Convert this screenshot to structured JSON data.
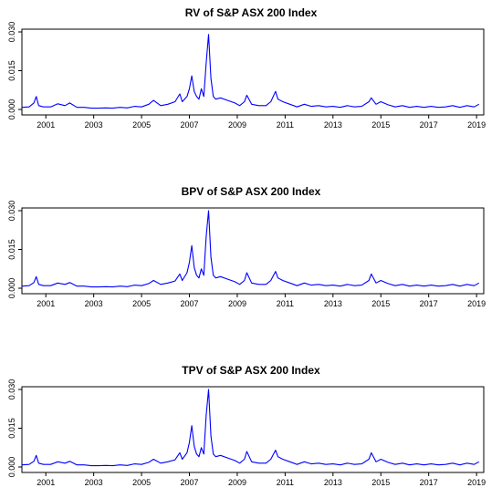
{
  "chart_data": [
    {
      "type": "line",
      "title": "RV of S&P ASX 200 Index",
      "xlabel": "",
      "ylabel": "",
      "xlim": [
        2000.0,
        2019.3
      ],
      "ylim": [
        0,
        0.03
      ],
      "x_ticks": [
        2001,
        2003,
        2005,
        2007,
        2009,
        2011,
        2013,
        2015,
        2017,
        2019
      ],
      "y_ticks": [
        "0.000",
        "0.015",
        "0.030"
      ],
      "series": [
        {
          "color": "#0000ff",
          "x": [
            2000.0,
            2000.3,
            2000.5,
            2000.6,
            2000.7,
            2000.9,
            2001.2,
            2001.5,
            2001.8,
            2002.0,
            2002.3,
            2002.6,
            2002.9,
            2003.2,
            2003.5,
            2003.8,
            2004.1,
            2004.4,
            2004.7,
            2005.0,
            2005.3,
            2005.5,
            2005.8,
            2006.1,
            2006.4,
            2006.6,
            2006.7,
            2006.9,
            2007.0,
            2007.1,
            2007.2,
            2007.3,
            2007.4,
            2007.5,
            2007.6,
            2007.7,
            2007.8,
            2007.9,
            2008.0,
            2008.1,
            2008.3,
            2008.6,
            2008.9,
            2009.1,
            2009.3,
            2009.4,
            2009.6,
            2009.9,
            2010.2,
            2010.4,
            2010.6,
            2010.7,
            2010.9,
            2011.2,
            2011.5,
            2011.8,
            2012.1,
            2012.4,
            2012.7,
            2013.0,
            2013.3,
            2013.6,
            2013.9,
            2014.2,
            2014.5,
            2014.6,
            2014.8,
            2015.0,
            2015.3,
            2015.6,
            2015.9,
            2016.2,
            2016.5,
            2016.8,
            2017.1,
            2017.4,
            2017.7,
            2018.0,
            2018.3,
            2018.6,
            2018.9,
            2019.1
          ],
          "values": [
            0.0008,
            0.001,
            0.0025,
            0.005,
            0.0015,
            0.001,
            0.001,
            0.0022,
            0.0015,
            0.0025,
            0.0008,
            0.0008,
            0.0005,
            0.0005,
            0.0006,
            0.0005,
            0.0008,
            0.0006,
            0.0012,
            0.001,
            0.002,
            0.0035,
            0.0015,
            0.002,
            0.003,
            0.006,
            0.003,
            0.005,
            0.008,
            0.013,
            0.007,
            0.005,
            0.004,
            0.008,
            0.005,
            0.018,
            0.029,
            0.012,
            0.005,
            0.004,
            0.0045,
            0.0035,
            0.0025,
            0.0015,
            0.003,
            0.0055,
            0.002,
            0.0015,
            0.0015,
            0.003,
            0.007,
            0.004,
            0.003,
            0.002,
            0.001,
            0.002,
            0.0012,
            0.0015,
            0.001,
            0.0012,
            0.0008,
            0.0015,
            0.001,
            0.0012,
            0.003,
            0.0045,
            0.002,
            0.003,
            0.0018,
            0.001,
            0.0015,
            0.0008,
            0.0012,
            0.0008,
            0.0012,
            0.0008,
            0.001,
            0.0015,
            0.0008,
            0.0015,
            0.001,
            0.002
          ]
        }
      ]
    },
    {
      "type": "line",
      "title": "BPV of S&P ASX 200 Index",
      "xlabel": "",
      "ylabel": "",
      "xlim": [
        2000.0,
        2019.3
      ],
      "ylim": [
        0,
        0.03
      ],
      "x_ticks": [
        2001,
        2003,
        2005,
        2007,
        2009,
        2011,
        2013,
        2015,
        2017,
        2019
      ],
      "y_ticks": [
        "0.000",
        "0.015",
        "0.030"
      ],
      "series": [
        {
          "color": "#0000ff",
          "x": [
            2000.0,
            2000.3,
            2000.5,
            2000.6,
            2000.7,
            2000.9,
            2001.2,
            2001.5,
            2001.8,
            2002.0,
            2002.3,
            2002.6,
            2002.9,
            2003.2,
            2003.5,
            2003.8,
            2004.1,
            2004.4,
            2004.7,
            2005.0,
            2005.3,
            2005.5,
            2005.8,
            2006.1,
            2006.4,
            2006.6,
            2006.7,
            2006.9,
            2007.0,
            2007.1,
            2007.2,
            2007.3,
            2007.4,
            2007.5,
            2007.6,
            2007.7,
            2007.8,
            2007.9,
            2008.0,
            2008.1,
            2008.3,
            2008.6,
            2008.9,
            2009.1,
            2009.3,
            2009.4,
            2009.6,
            2009.9,
            2010.2,
            2010.4,
            2010.6,
            2010.7,
            2010.9,
            2011.2,
            2011.5,
            2011.8,
            2012.1,
            2012.4,
            2012.7,
            2013.0,
            2013.3,
            2013.6,
            2013.9,
            2014.2,
            2014.5,
            2014.6,
            2014.8,
            2015.0,
            2015.3,
            2015.6,
            2015.9,
            2016.2,
            2016.5,
            2016.8,
            2017.1,
            2017.4,
            2017.7,
            2018.0,
            2018.3,
            2018.6,
            2018.9,
            2019.1
          ],
          "values": [
            0.0008,
            0.001,
            0.0022,
            0.0045,
            0.0015,
            0.001,
            0.001,
            0.002,
            0.0015,
            0.0022,
            0.0008,
            0.0008,
            0.0005,
            0.0005,
            0.0006,
            0.0005,
            0.0008,
            0.0006,
            0.0012,
            0.001,
            0.0018,
            0.003,
            0.0015,
            0.002,
            0.0028,
            0.0055,
            0.003,
            0.006,
            0.01,
            0.0165,
            0.008,
            0.005,
            0.004,
            0.0075,
            0.005,
            0.02,
            0.03,
            0.012,
            0.005,
            0.004,
            0.0045,
            0.0035,
            0.0025,
            0.0015,
            0.003,
            0.006,
            0.002,
            0.0015,
            0.0015,
            0.003,
            0.0065,
            0.004,
            0.003,
            0.002,
            0.001,
            0.002,
            0.0012,
            0.0015,
            0.001,
            0.0012,
            0.0008,
            0.0015,
            0.001,
            0.0012,
            0.003,
            0.0055,
            0.002,
            0.003,
            0.0018,
            0.001,
            0.0015,
            0.0008,
            0.0012,
            0.0008,
            0.0012,
            0.0008,
            0.001,
            0.0015,
            0.0008,
            0.0015,
            0.001,
            0.002
          ]
        }
      ]
    },
    {
      "type": "line",
      "title": "TPV of S&P ASX 200 Index",
      "xlabel": "",
      "ylabel": "",
      "xlim": [
        2000.0,
        2019.3
      ],
      "ylim": [
        0,
        0.03
      ],
      "x_ticks": [
        2001,
        2003,
        2005,
        2007,
        2009,
        2011,
        2013,
        2015,
        2017,
        2019
      ],
      "y_ticks": [
        "0.000",
        "0.015",
        "0.030"
      ],
      "series": [
        {
          "color": "#0000ff",
          "x": [
            2000.0,
            2000.3,
            2000.5,
            2000.6,
            2000.7,
            2000.9,
            2001.2,
            2001.5,
            2001.8,
            2002.0,
            2002.3,
            2002.6,
            2002.9,
            2003.2,
            2003.5,
            2003.8,
            2004.1,
            2004.4,
            2004.7,
            2005.0,
            2005.3,
            2005.5,
            2005.8,
            2006.1,
            2006.4,
            2006.6,
            2006.7,
            2006.9,
            2007.0,
            2007.1,
            2007.2,
            2007.3,
            2007.4,
            2007.5,
            2007.6,
            2007.7,
            2007.8,
            2007.9,
            2008.0,
            2008.1,
            2008.3,
            2008.6,
            2008.9,
            2009.1,
            2009.3,
            2009.4,
            2009.6,
            2009.9,
            2010.2,
            2010.4,
            2010.6,
            2010.7,
            2010.9,
            2011.2,
            2011.5,
            2011.8,
            2012.1,
            2012.4,
            2012.7,
            2013.0,
            2013.3,
            2013.6,
            2013.9,
            2014.2,
            2014.5,
            2014.6,
            2014.8,
            2015.0,
            2015.3,
            2015.6,
            2015.9,
            2016.2,
            2016.5,
            2016.8,
            2017.1,
            2017.4,
            2017.7,
            2018.0,
            2018.3,
            2018.6,
            2018.9,
            2019.1
          ],
          "values": [
            0.0008,
            0.001,
            0.0022,
            0.0045,
            0.0015,
            0.001,
            0.001,
            0.002,
            0.0015,
            0.0022,
            0.0008,
            0.0008,
            0.0005,
            0.0005,
            0.0006,
            0.0005,
            0.0008,
            0.0006,
            0.0012,
            0.001,
            0.0018,
            0.003,
            0.0015,
            0.002,
            0.0028,
            0.0055,
            0.003,
            0.0055,
            0.0095,
            0.016,
            0.008,
            0.005,
            0.004,
            0.0075,
            0.005,
            0.02,
            0.03,
            0.012,
            0.005,
            0.004,
            0.0045,
            0.0035,
            0.0025,
            0.0015,
            0.003,
            0.006,
            0.002,
            0.0015,
            0.0015,
            0.003,
            0.0065,
            0.004,
            0.003,
            0.002,
            0.001,
            0.002,
            0.0012,
            0.0015,
            0.001,
            0.0012,
            0.0008,
            0.0015,
            0.001,
            0.0012,
            0.003,
            0.0055,
            0.002,
            0.003,
            0.0018,
            0.001,
            0.0015,
            0.0008,
            0.0012,
            0.0008,
            0.0012,
            0.0008,
            0.001,
            0.0015,
            0.0008,
            0.0015,
            0.001,
            0.002
          ]
        }
      ]
    }
  ]
}
